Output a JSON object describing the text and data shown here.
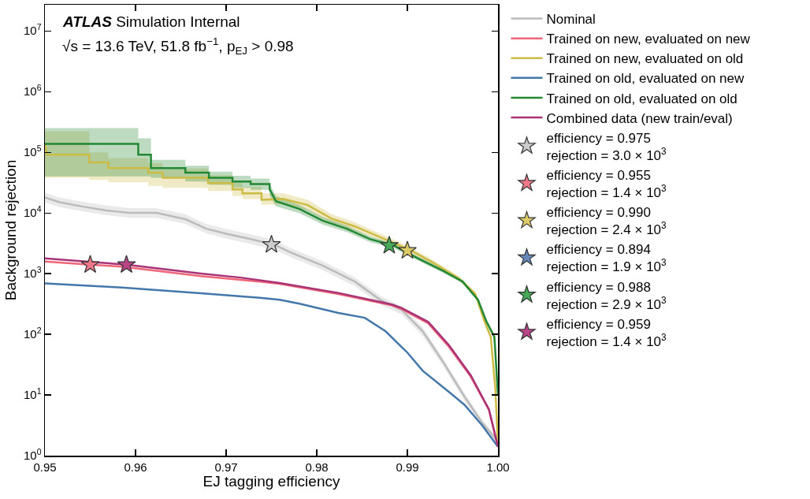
{
  "chart_data": {
    "type": "line",
    "xlabel": "EJ tagging efficiency",
    "ylabel": "Background rejection",
    "annotations": [
      "ATLAS",
      "Simulation Internal",
      "√s = 13.6 TeV, 51.8 fb$^{−1}$, p$_{EJ}$ > 0.98"
    ],
    "log": "y",
    "grid": false,
    "legend": "right",
    "line_style": "solid",
    "marker": "none",
    "xlim": [
      0.95,
      1.0
    ],
    "xticks": [
      0.95,
      0.96,
      0.97,
      0.98,
      0.99,
      {
        "value": 1.0,
        "label": "1.00"
      }
    ],
    "ylim": [
      1,
      27000000
    ],
    "yticks": [
      {
        "value": 1,
        "label": "10$^{0}$"
      },
      {
        "value": 10,
        "label": "10$^{1}$"
      },
      {
        "value": 100,
        "label": "10$^{2}$"
      },
      {
        "value": 1000,
        "label": "10$^{3}$"
      },
      {
        "value": 10000,
        "label": "10$^{4}$"
      },
      {
        "value": 100000,
        "label": "10$^{5}$"
      },
      {
        "value": 1000000,
        "label": "10$^{6}$"
      },
      {
        "value": 10000000,
        "label": "10$^{7}$"
      }
    ],
    "series": [
      {
        "name": "Nominal",
        "color": "#bbbbbb",
        "x": [
          0.95,
          0.9516,
          0.9542,
          0.9568,
          0.9594,
          0.9623,
          0.9655,
          0.9678,
          0.9701,
          0.9724,
          0.9753,
          0.9772,
          0.9807,
          0.9842,
          0.987,
          0.9894,
          0.9917,
          0.994,
          0.9963,
          0.9983,
          1.0
        ],
        "values": [
          18000,
          15000,
          12700,
          11000,
          10000,
          10000,
          7900,
          5500,
          4500,
          3800,
          3000,
          2200,
          1350,
          740,
          370,
          250,
          112,
          34,
          9.4,
          3.4,
          1.7
        ],
        "upper": [
          21500,
          18000,
          15200,
          13200,
          12000,
          12000,
          9500,
          6600,
          5400,
          4550,
          3600,
          2600,
          1600,
          870,
          430,
          290,
          130,
          39,
          10.8,
          3.9,
          1.9
        ],
        "lower": [
          15000,
          12500,
          10600,
          9200,
          8300,
          8300,
          6600,
          4600,
          3750,
          3150,
          2500,
          1850,
          1130,
          620,
          310,
          210,
          94,
          29,
          8,
          2.9,
          1.5
        ]
      },
      {
        "name": "Trained on new, evaluated on new",
        "color": "#ee6677",
        "x": [
          0.95,
          0.955,
          0.9585,
          0.9672,
          0.9737,
          0.9759,
          0.9824,
          0.9883,
          0.9894,
          0.9923,
          0.9946,
          0.997,
          0.999,
          1.0
        ],
        "values": [
          1580,
          1400,
          1300,
          910,
          740,
          680,
          460,
          300,
          260,
          152,
          62,
          20,
          5.7,
          1.4
        ]
      },
      {
        "name": "Trained on new, evaluated on old",
        "color": "#ccbb44",
        "x": [
          0.95,
          0.9502,
          0.9549,
          0.9549,
          0.957,
          0.957,
          0.9614,
          0.9614,
          0.963,
          0.963,
          0.968,
          0.968,
          0.9707,
          0.9707,
          0.9718,
          0.9718,
          0.9739,
          0.9739,
          0.9763,
          0.979,
          0.9816,
          0.9842,
          0.9868,
          0.9903,
          0.9929,
          0.9957,
          0.9975,
          0.9985,
          0.9992,
          0.9997,
          1.0
        ],
        "values": [
          140000,
          91000,
          91000,
          68000,
          68000,
          55000,
          55000,
          46000,
          46000,
          38000,
          38000,
          31000,
          31000,
          24500,
          24500,
          21000,
          21000,
          16500,
          17000,
          13500,
          8100,
          6000,
          4100,
          2450,
          1500,
          830,
          460,
          165,
          91,
          13,
          1.5
        ],
        "upper": [
          220000,
          220000,
          220000,
          100000,
          100000,
          80000,
          80000,
          66000,
          66000,
          54000,
          54000,
          42000,
          42000,
          32000,
          32000,
          27000,
          27000,
          21000,
          21000,
          16500,
          9600,
          7000,
          4700,
          2750,
          1650,
          900,
          500,
          180,
          100,
          15,
          1.8
        ],
        "lower": [
          38000,
          38000,
          38000,
          35000,
          35000,
          32000,
          32000,
          28000,
          28000,
          26000,
          26000,
          23000,
          23000,
          19000,
          19000,
          17000,
          17000,
          13500,
          14000,
          11000,
          6800,
          5100,
          3600,
          2200,
          1350,
          760,
          420,
          150,
          82,
          11,
          1.2
        ]
      },
      {
        "name": "Trained on old, evaluated on new",
        "color": "#4477aa",
        "x": [
          0.95,
          0.9585,
          0.9672,
          0.9737,
          0.9759,
          0.9781,
          0.9824,
          0.9853,
          0.9876,
          0.99,
          0.9917,
          0.9946,
          0.9963,
          0.9983,
          1.0
        ],
        "values": [
          690,
          590,
          475,
          400,
          370,
          320,
          225,
          187,
          112,
          50,
          25,
          11.2,
          6.9,
          3.1,
          1.4
        ]
      },
      {
        "name": "Trained on old, evaluated on old",
        "color": "#228833",
        "x": [
          0.95,
          0.9603,
          0.9603,
          0.9617,
          0.9617,
          0.9655,
          0.9655,
          0.9681,
          0.9681,
          0.9707,
          0.9707,
          0.9727,
          0.9727,
          0.9748,
          0.9748,
          0.9755,
          0.9781,
          0.9807,
          0.9833,
          0.9859,
          0.9885,
          0.9911,
          0.994,
          0.9961,
          0.9978,
          0.9987,
          0.9996,
          1.0
        ],
        "values": [
          137000,
          137000,
          91000,
          91000,
          55000,
          55000,
          46000,
          46000,
          38000,
          38000,
          33000,
          33000,
          30000,
          30000,
          24500,
          15600,
          11600,
          7400,
          5500,
          3700,
          2900,
          1800,
          1100,
          740,
          370,
          165,
          91,
          10
        ],
        "upper": [
          250000,
          250000,
          170000,
          170000,
          75000,
          75000,
          60000,
          60000,
          48000,
          48000,
          41000,
          41000,
          37000,
          37000,
          30000,
          19000,
          13500,
          8500,
          6200,
          4100,
          3150,
          1950,
          1180,
          790,
          400,
          180,
          100,
          12
        ],
        "lower": [
          40000,
          40000,
          40000,
          40000,
          38000,
          38000,
          33000,
          33000,
          29000,
          29000,
          26000,
          26000,
          24000,
          24000,
          19500,
          12800,
          9900,
          6400,
          4850,
          3300,
          2650,
          1650,
          1020,
          690,
          340,
          150,
          82,
          8
        ]
      },
      {
        "name": "Combined data (new train/eval)",
        "color": "#aa3377",
        "x": [
          0.95,
          0.959,
          0.9672,
          0.9716,
          0.9759,
          0.9824,
          0.9883,
          0.9894,
          0.9923,
          0.9946,
          0.997,
          0.999,
          1.0
        ],
        "values": [
          1780,
          1400,
          1000,
          860,
          700,
          480,
          310,
          270,
          160,
          66,
          21,
          5.8,
          1.4
        ]
      },
      {
        "type": "scatter",
        "marker": "star",
        "name": "efficiency = 0.975\nrejection = 3.0 × 10$^{3}$",
        "color": "#cccccc",
        "x": [
          0.975
        ],
        "values": [
          3000
        ]
      },
      {
        "type": "scatter",
        "marker": "star",
        "name": "efficiency = 0.955\nrejection = 1.4 × 10$^{3}$",
        "color": "#ee7788",
        "x": [
          0.955
        ],
        "values": [
          1400
        ]
      },
      {
        "type": "scatter",
        "marker": "star",
        "name": "efficiency = 0.990\nrejection = 2.4 × 10$^{3}$",
        "color": "#ddcc66",
        "x": [
          0.99
        ],
        "values": [
          2400
        ]
      },
      {
        "type": "scatter",
        "marker": "star",
        "name": "efficiency = 0.894\nrejection = 1.9 × 10$^{3}$",
        "color": "#6688bb",
        "x": [
          null
        ],
        "values": [
          null
        ]
      },
      {
        "type": "scatter",
        "marker": "star",
        "name": "efficiency = 0.988\nrejection = 2.9 × 10$^{3}$",
        "color": "#44aa55",
        "x": [
          0.988
        ],
        "values": [
          2900
        ]
      },
      {
        "type": "scatter",
        "marker": "star",
        "name": "efficiency = 0.959\nrejection = 1.4 × 10$^{3}$",
        "color": "#bb4488",
        "x": [
          0.959
        ],
        "values": [
          1400
        ]
      }
    ]
  }
}
